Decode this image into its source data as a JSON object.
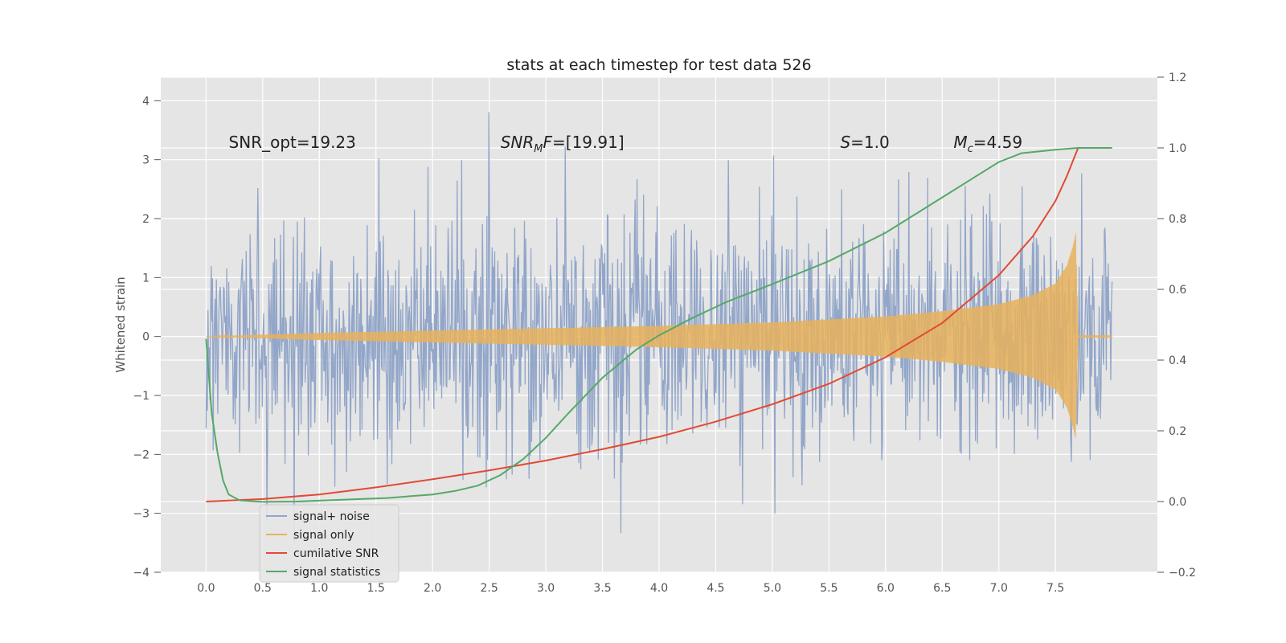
{
  "chart_data": {
    "type": "line",
    "title": "stats at each timestep for test data 526",
    "ylabel": "Whitened strain",
    "xlabel": "",
    "xlim": [
      -0.4,
      8.4
    ],
    "ylim": [
      -4,
      4.4
    ],
    "y2lim": [
      -0.2,
      1.2
    ],
    "x_ticks": [
      0.0,
      0.5,
      1.0,
      1.5,
      2.0,
      2.5,
      3.0,
      3.5,
      4.0,
      4.5,
      5.0,
      5.5,
      6.0,
      6.5,
      7.0,
      7.5
    ],
    "x_tick_labels": [
      "0.0",
      "0.5",
      "1.0",
      "1.5",
      "2.0",
      "2.5",
      "3.0",
      "3.5",
      "4.0",
      "4.5",
      "5.0",
      "5.5",
      "6.0",
      "6.5",
      "7.0",
      "7.5"
    ],
    "y_ticks": [
      -4,
      -3,
      -2,
      -1,
      0,
      1,
      2,
      3,
      4
    ],
    "y_tick_labels": [
      "−4",
      "−3",
      "−2",
      "−1",
      "0",
      "1",
      "2",
      "3",
      "4"
    ],
    "y2_ticks": [
      -0.2,
      0.0,
      0.2,
      0.4,
      0.6,
      0.8,
      1.0,
      1.2
    ],
    "y2_tick_labels": [
      "−0.2",
      "0.0",
      "0.2",
      "0.4",
      "0.6",
      "0.8",
      "1.0",
      "1.2"
    ],
    "grid": true,
    "legend_position": "lower-left",
    "annotations": [
      {
        "text": "SNR_opt=19.23",
        "x": 0.2,
        "y": 3.2
      },
      {
        "text": "SNR_MF=[19.91]",
        "x": 2.6,
        "y": 3.2
      },
      {
        "text": "S=1.0",
        "x": 5.6,
        "y": 3.2
      },
      {
        "text": "M_c=4.59",
        "x": 6.6,
        "y": 3.2
      }
    ],
    "series": [
      {
        "name": "signal+ noise",
        "color": "#92a6c9",
        "axis": "left",
        "x_range": [
          0.0,
          8.0
        ],
        "envelope_typical": 1.6,
        "peak_max": 4.0,
        "peak_min": -3.65
      },
      {
        "name": "signal only",
        "color": "#e8b25c",
        "axis": "left",
        "x_range": [
          0.0,
          8.0
        ],
        "amplitude": {
          "x": [
            0.0,
            1.0,
            2.0,
            3.0,
            4.0,
            5.0,
            6.0,
            6.5,
            7.0,
            7.3,
            7.5,
            7.6,
            7.65,
            7.68,
            7.7,
            8.0
          ],
          "y": [
            0.0,
            0.06,
            0.1,
            0.14,
            0.18,
            0.24,
            0.34,
            0.43,
            0.55,
            0.7,
            0.9,
            1.2,
            1.5,
            1.75,
            0.02,
            0.02
          ]
        }
      },
      {
        "name": "cumilative SNR",
        "color": "#e24a33",
        "axis": "right",
        "x": [
          0.0,
          0.5,
          1.0,
          1.5,
          2.0,
          2.5,
          3.0,
          3.5,
          4.0,
          4.5,
          5.0,
          5.5,
          6.0,
          6.5,
          7.0,
          7.3,
          7.5,
          7.6,
          7.65,
          7.7,
          8.0
        ],
        "y": [
          0.0,
          0.007,
          0.02,
          0.04,
          0.063,
          0.088,
          0.116,
          0.148,
          0.183,
          0.226,
          0.275,
          0.333,
          0.408,
          0.505,
          0.64,
          0.75,
          0.85,
          0.92,
          0.96,
          1.0,
          1.0
        ]
      },
      {
        "name": "signal statistics",
        "color": "#55a868",
        "axis": "right",
        "x": [
          0.0,
          0.05,
          0.1,
          0.15,
          0.2,
          0.3,
          0.5,
          0.8,
          1.2,
          1.6,
          2.0,
          2.2,
          2.4,
          2.6,
          2.8,
          3.0,
          3.2,
          3.5,
          3.8,
          4.0,
          4.3,
          4.6,
          5.0,
          5.5,
          6.0,
          6.5,
          6.8,
          7.0,
          7.2,
          7.5,
          7.7,
          8.0
        ],
        "y": [
          0.46,
          0.25,
          0.14,
          0.06,
          0.02,
          0.003,
          -0.001,
          0.0,
          0.005,
          0.01,
          0.02,
          0.03,
          0.045,
          0.075,
          0.12,
          0.18,
          0.25,
          0.35,
          0.43,
          0.47,
          0.52,
          0.565,
          0.615,
          0.68,
          0.76,
          0.86,
          0.92,
          0.96,
          0.985,
          0.995,
          1.0,
          1.0
        ]
      }
    ]
  }
}
